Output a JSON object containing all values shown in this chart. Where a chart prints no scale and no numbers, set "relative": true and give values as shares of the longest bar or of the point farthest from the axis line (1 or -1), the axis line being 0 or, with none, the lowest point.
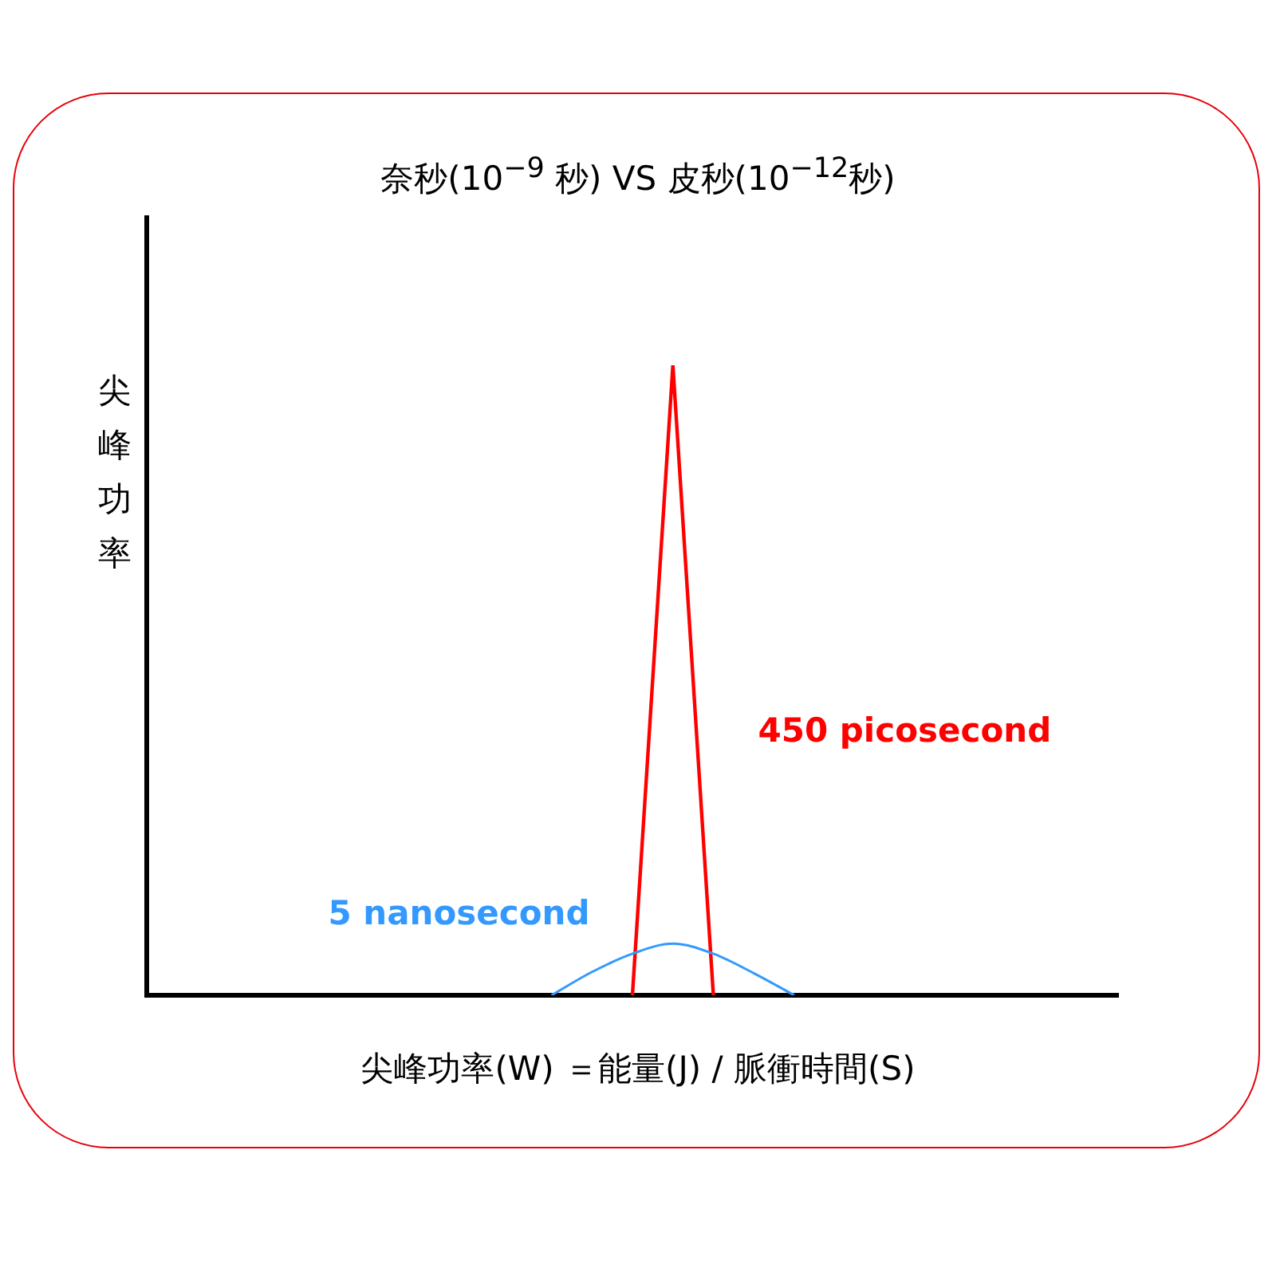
{
  "chart_data": {
    "type": "line",
    "title": "奈秒(10$^{−9}$ 秒) VS 皮秒(10$^{−12}$秒)",
    "xlabel": "尖峰功率(W) ＝能量(J) / 脈衝時間(S)",
    "ylabel": "尖峰功率",
    "relative": true,
    "legend": false,
    "grid": false,
    "marker": "none",
    "categories": [
      null,
      null,
      null,
      null,
      null,
      null,
      null,
      null,
      null,
      null,
      null,
      null,
      null,
      null,
      null,
      null,
      null,
      null,
      null,
      null,
      null,
      null,
      null,
      null,
      null
    ],
    "series": [
      {
        "name": "5 nanosecond",
        "color": "#3399ff",
        "values": [
          null,
          null,
          null,
          null,
          null,
          null,
          null,
          null,
          null,
          null,
          0,
          0.037,
          0.066,
          0.082,
          0.066,
          0.035,
          0,
          null,
          null,
          null,
          null,
          null,
          null,
          null,
          null
        ]
      },
      {
        "name": "450 picosecond",
        "color": "#ff0000",
        "values": [
          null,
          null,
          null,
          null,
          null,
          null,
          null,
          null,
          null,
          null,
          null,
          null,
          0,
          1,
          0,
          null,
          null,
          null,
          null,
          null,
          null,
          null,
          null,
          null,
          null
        ]
      }
    ]
  }
}
